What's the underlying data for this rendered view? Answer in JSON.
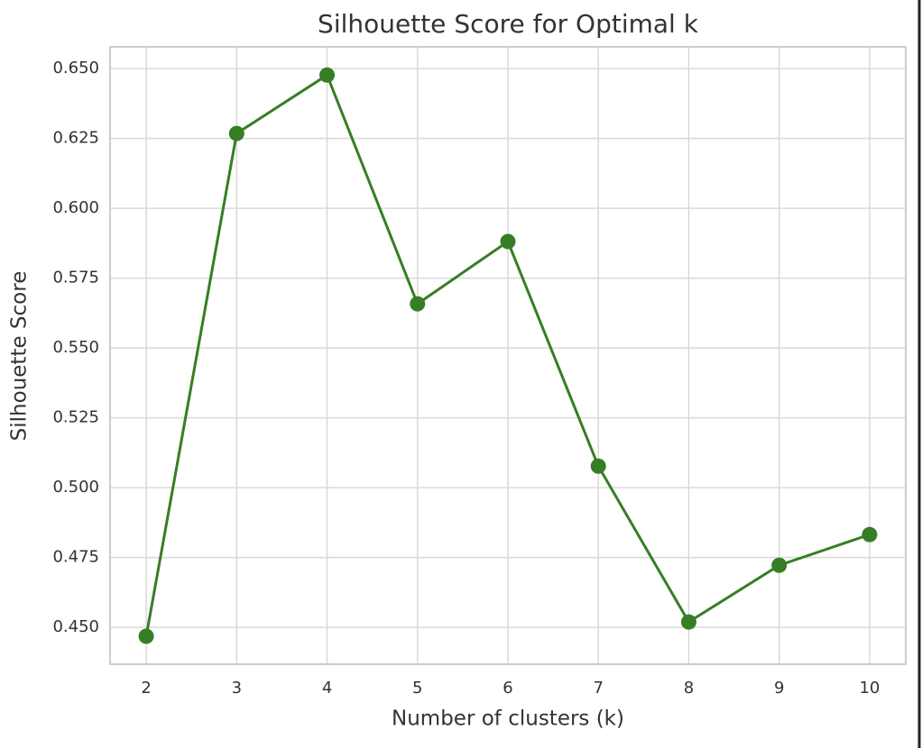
{
  "chart_data": {
    "type": "line",
    "title": "Silhouette Score for Optimal k",
    "x_label": "Number of clusters (k)",
    "y_label": "Silhouette Score",
    "x": [
      2,
      3,
      4,
      5,
      6,
      7,
      8,
      9,
      10
    ],
    "series": [
      {
        "name": "Silhouette Score",
        "color": "#367e25",
        "values": [
          0.4468,
          0.6268,
          0.6477,
          0.5658,
          0.5881,
          0.5077,
          0.4519,
          0.4722,
          0.4832
        ]
      }
    ],
    "xlim": [
      1.6,
      10.4
    ],
    "xticks": [
      2,
      3,
      4,
      5,
      6,
      7,
      8,
      9,
      10
    ],
    "ylim": [
      0.4368,
      0.6578
    ],
    "yticks": [
      {
        "value": 0.45,
        "label": "0.450"
      },
      {
        "value": 0.475,
        "label": "0.475"
      },
      {
        "value": 0.5,
        "label": "0.500"
      },
      {
        "value": 0.525,
        "label": "0.525"
      },
      {
        "value": 0.55,
        "label": "0.550"
      },
      {
        "value": 0.575,
        "label": "0.575"
      },
      {
        "value": 0.6,
        "label": "0.600"
      },
      {
        "value": 0.625,
        "label": "0.625"
      },
      {
        "value": 0.65,
        "label": "0.650"
      }
    ],
    "grid": true,
    "markers": true
  }
}
